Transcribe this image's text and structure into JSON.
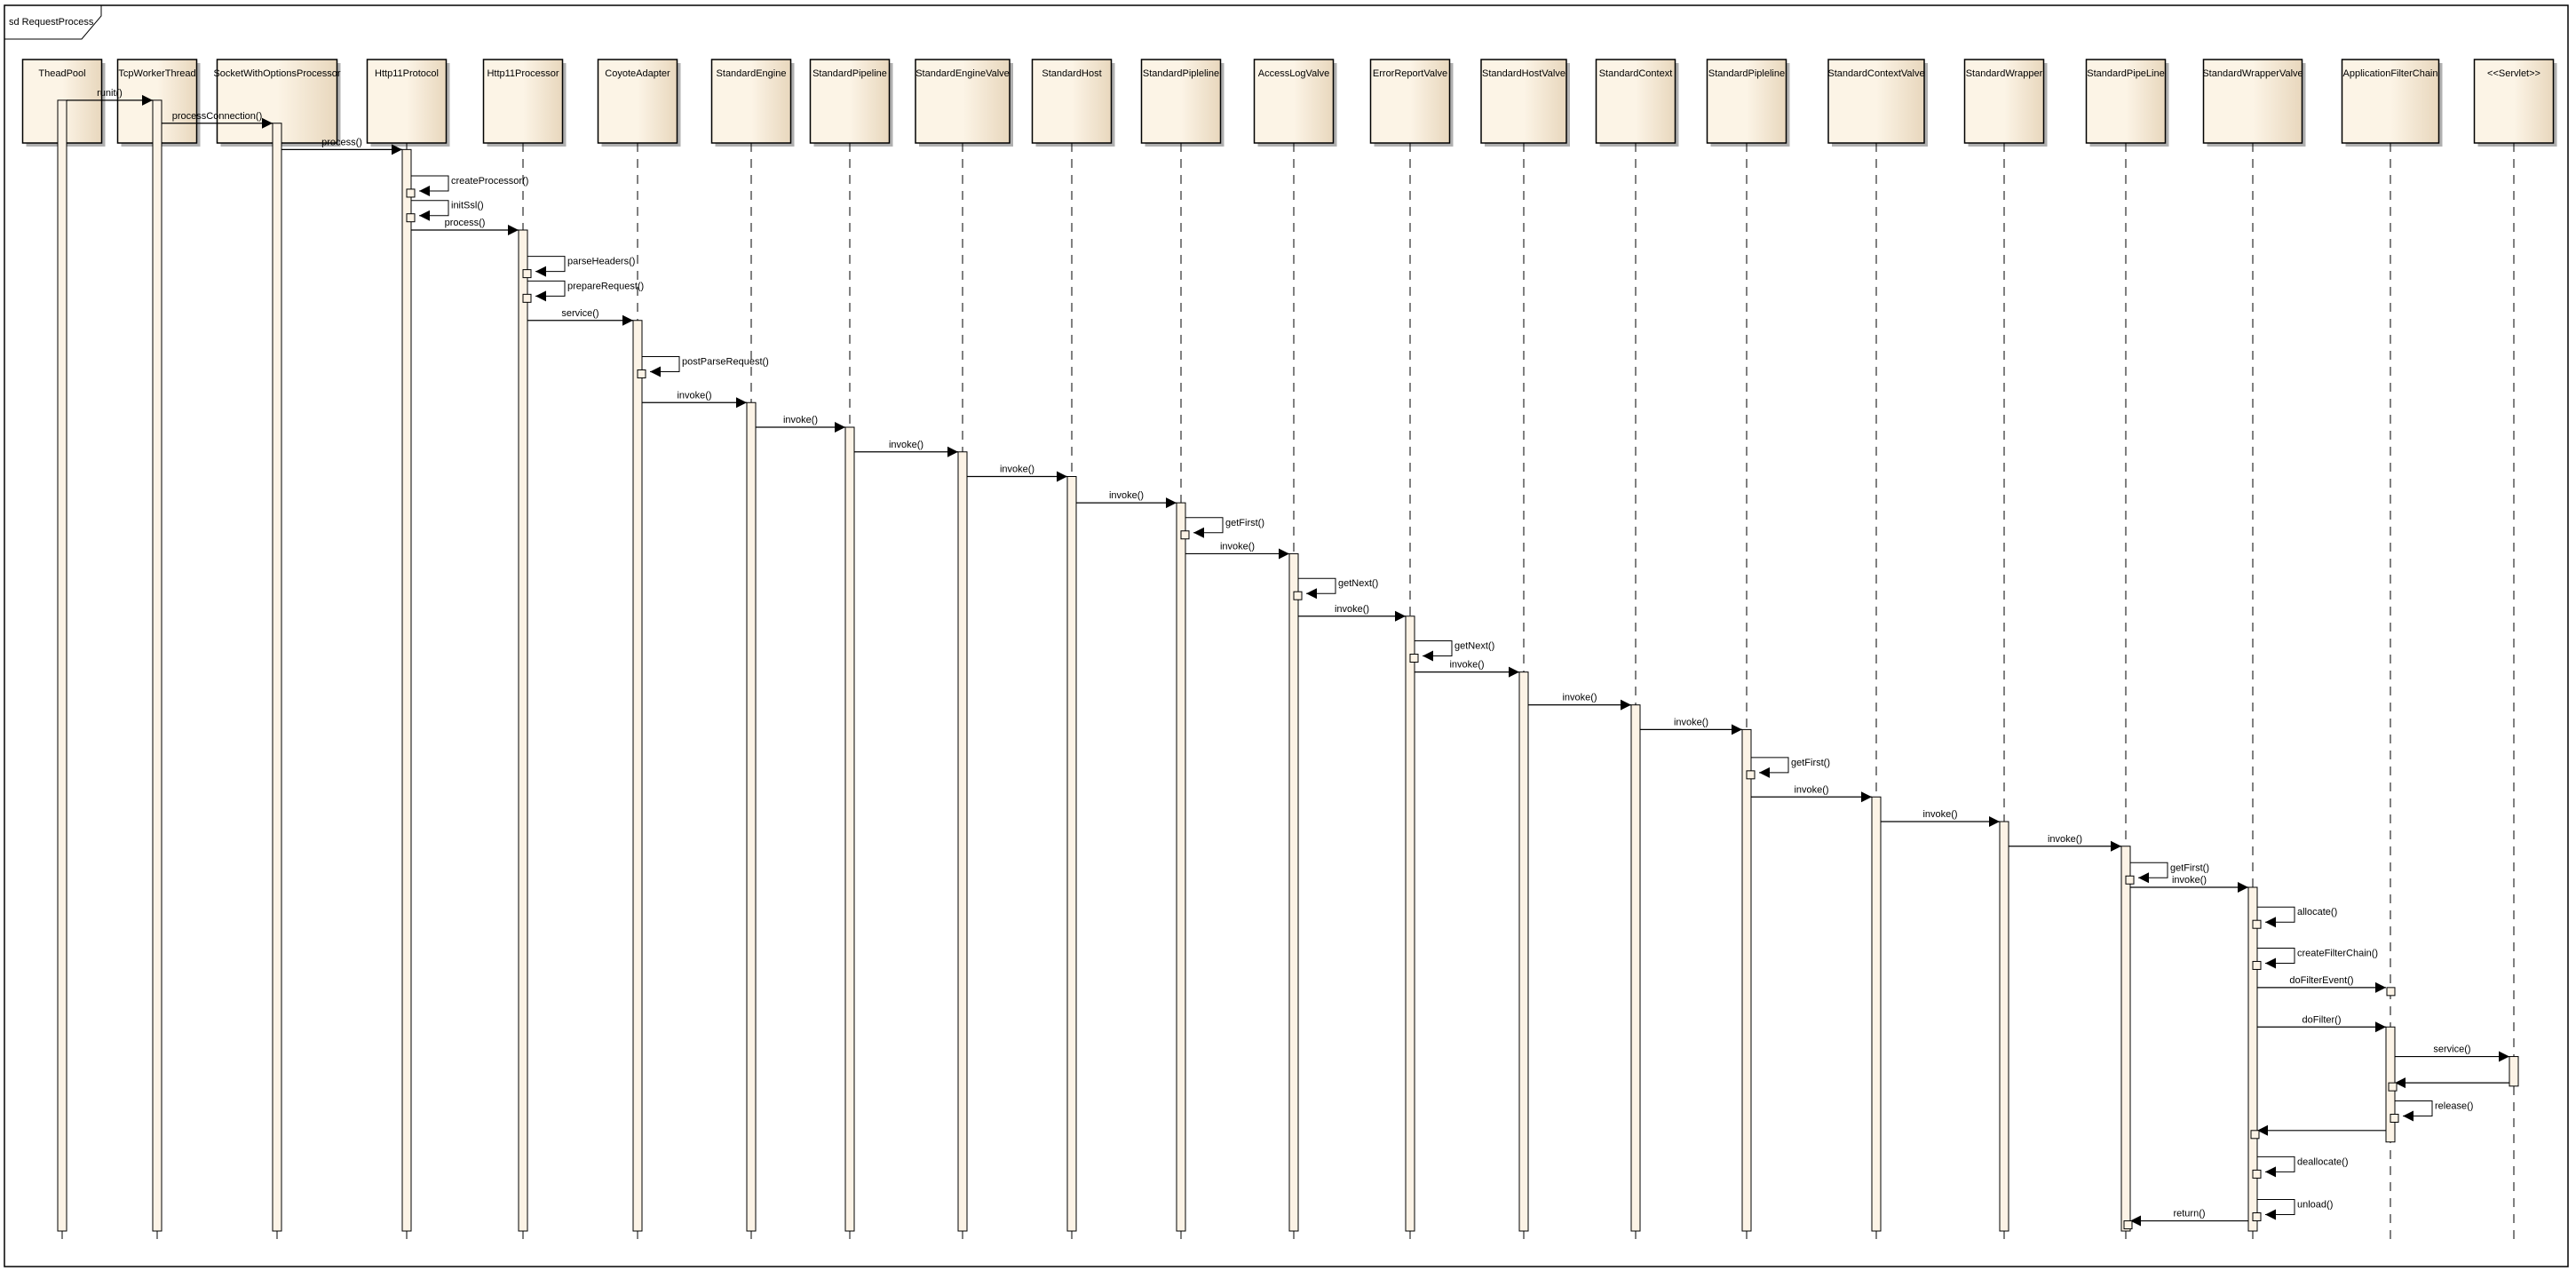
{
  "frame": {
    "title": "sd RequestProcess"
  },
  "colors": {
    "box_light": "#fcf4e6",
    "box_dark": "#e8d7bd",
    "activation": "#fcf3e6",
    "line": "#000000",
    "shadow": "#b0b0b0"
  },
  "participants": [
    "TheadPool",
    "TcpWorkerThread",
    "SocketWithOptionsProcessor",
    "Http11Protocol",
    "Http11Processor",
    "CoyoteAdapter",
    "StandardEngine",
    "StandardPipeline",
    "StandardEngineValve",
    "StandardHost",
    "StandardPipleline",
    "AccessLogValve",
    "ErrorReportValve",
    "StandardHostValve",
    "StandardContext",
    "StandardPipleline",
    "StandardContextValve",
    "StandardWrapper",
    "StandardPipeLine",
    "StandardWrapperValve",
    "ApplicationFilterChain",
    "<<Servlet>>"
  ],
  "messages": [
    {
      "from": 0,
      "to": 1,
      "label": "runit()"
    },
    {
      "from": 1,
      "to": 2,
      "label": "processConnection()"
    },
    {
      "from": 2,
      "to": 3,
      "label": "process()"
    },
    {
      "from": 3,
      "to": 3,
      "label": "createProcessor()"
    },
    {
      "from": 3,
      "to": 3,
      "label": "initSsl()"
    },
    {
      "from": 3,
      "to": 4,
      "label": "process()"
    },
    {
      "from": 4,
      "to": 4,
      "label": "parseHeaders()"
    },
    {
      "from": 4,
      "to": 4,
      "label": "prepareRequest()"
    },
    {
      "from": 4,
      "to": 5,
      "label": "service()"
    },
    {
      "from": 5,
      "to": 5,
      "label": "postParseRequest()"
    },
    {
      "from": 5,
      "to": 6,
      "label": "invoke()"
    },
    {
      "from": 6,
      "to": 7,
      "label": "invoke()"
    },
    {
      "from": 7,
      "to": 8,
      "label": "invoke()"
    },
    {
      "from": 8,
      "to": 9,
      "label": "invoke()"
    },
    {
      "from": 9,
      "to": 10,
      "label": "invoke()"
    },
    {
      "from": 10,
      "to": 10,
      "label": "getFirst()"
    },
    {
      "from": 10,
      "to": 11,
      "label": "invoke()"
    },
    {
      "from": 11,
      "to": 11,
      "label": "getNext()"
    },
    {
      "from": 11,
      "to": 12,
      "label": "invoke()"
    },
    {
      "from": 12,
      "to": 12,
      "label": "getNext()"
    },
    {
      "from": 12,
      "to": 13,
      "label": "invoke()"
    },
    {
      "from": 13,
      "to": 14,
      "label": "invoke()"
    },
    {
      "from": 14,
      "to": 15,
      "label": "invoke()"
    },
    {
      "from": 15,
      "to": 15,
      "label": "getFirst()"
    },
    {
      "from": 15,
      "to": 16,
      "label": "invoke()"
    },
    {
      "from": 16,
      "to": 17,
      "label": "invoke()"
    },
    {
      "from": 17,
      "to": 18,
      "label": "invoke()"
    },
    {
      "from": 18,
      "to": 18,
      "label": "getFirst()"
    },
    {
      "from": 18,
      "to": 19,
      "label": "invoke()"
    },
    {
      "from": 19,
      "to": 19,
      "label": "allocate()"
    },
    {
      "from": 19,
      "to": 19,
      "label": "createFilterChain()"
    },
    {
      "from": 19,
      "to": 20,
      "label": "doFilterEvent()"
    },
    {
      "from": 19,
      "to": 20,
      "label": "doFilter()"
    },
    {
      "from": 20,
      "to": 21,
      "label": "service()"
    },
    {
      "from": 21,
      "to": 20,
      "label": ""
    },
    {
      "from": 20,
      "to": 20,
      "label": "release()"
    },
    {
      "from": 20,
      "to": 19,
      "label": ""
    },
    {
      "from": 19,
      "to": 19,
      "label": "deallocate()"
    },
    {
      "from": 19,
      "to": 19,
      "label": "unload()"
    },
    {
      "from": 19,
      "to": 18,
      "label": "return()"
    }
  ]
}
